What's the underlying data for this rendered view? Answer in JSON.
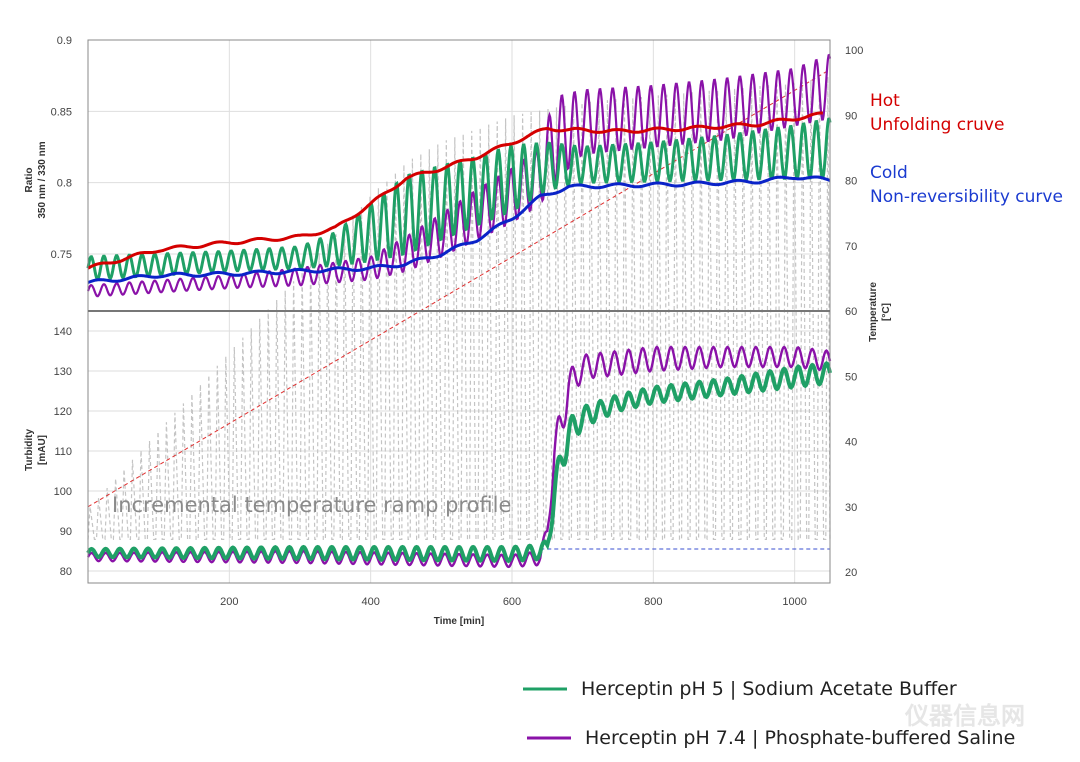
{
  "chart_data": {
    "type": "line",
    "xlabel": "Time [min]",
    "xlim": [
      0,
      1050
    ],
    "xticks": [
      200,
      400,
      600,
      800,
      1000
    ],
    "y2label": "Temperature [°C]",
    "y2lim": [
      20,
      100
    ],
    "y2ticks": [
      20,
      30,
      40,
      50,
      60,
      70,
      80,
      90,
      100
    ],
    "top_panel": {
      "ylabel": "Ratio 350 nm / 330 nm",
      "ylim": [
        0.71,
        0.9
      ],
      "yticks": [
        0.75,
        0.8,
        0.85,
        0.9
      ],
      "series": [
        {
          "name": "Hot Unfolding cruve",
          "color": "#d40000",
          "x": [
            0,
            100,
            200,
            300,
            350,
            400,
            450,
            500,
            550,
            600,
            650,
            680,
            750,
            850,
            950,
            1000,
            1040
          ],
          "y": [
            0.74,
            0.753,
            0.758,
            0.762,
            0.768,
            0.785,
            0.803,
            0.81,
            0.818,
            0.828,
            0.838,
            0.837,
            0.836,
            0.838,
            0.841,
            0.845,
            0.848
          ]
        },
        {
          "name": "Cold Non-reversibility curve",
          "color": "#0a23c8",
          "x": [
            0,
            100,
            200,
            300,
            400,
            450,
            500,
            550,
            600,
            640,
            680,
            750,
            850,
            950,
            1000,
            1050
          ],
          "y": [
            0.73,
            0.735,
            0.736,
            0.738,
            0.74,
            0.743,
            0.75,
            0.76,
            0.775,
            0.79,
            0.797,
            0.798,
            0.799,
            0.801,
            0.804,
            0.802
          ]
        },
        {
          "name": "Herceptin pH 5 | Sodium Acetate Buffer",
          "color": "#1fa066",
          "x": [
            0,
            200,
            300,
            350,
            400,
            450,
            500,
            550,
            600,
            650,
            700,
            800,
            900,
            1000,
            1050
          ],
          "low": [
            0.732,
            0.738,
            0.74,
            0.742,
            0.745,
            0.75,
            0.76,
            0.77,
            0.78,
            0.795,
            0.8,
            0.801,
            0.802,
            0.803,
            0.803
          ],
          "high": [
            0.748,
            0.752,
            0.755,
            0.765,
            0.785,
            0.805,
            0.812,
            0.818,
            0.826,
            0.828,
            0.825,
            0.828,
            0.833,
            0.84,
            0.845
          ]
        },
        {
          "name": "Herceptin pH 7.4 | Phosphate-buffered Saline",
          "color": "#8a12a8",
          "x": [
            0,
            200,
            300,
            400,
            450,
            500,
            550,
            600,
            640,
            660,
            700,
            800,
            900,
            1000,
            1050
          ],
          "low": [
            0.72,
            0.726,
            0.728,
            0.732,
            0.738,
            0.748,
            0.76,
            0.772,
            0.785,
            0.8,
            0.82,
            0.825,
            0.83,
            0.84,
            0.845
          ],
          "high": [
            0.728,
            0.735,
            0.74,
            0.748,
            0.762,
            0.778,
            0.795,
            0.81,
            0.825,
            0.86,
            0.865,
            0.868,
            0.873,
            0.88,
            0.89
          ]
        }
      ]
    },
    "bottom_panel": {
      "ylabel": "Turbidity [mAU]",
      "ylim": [
        77,
        145
      ],
      "yticks": [
        80,
        90,
        100,
        110,
        120,
        130,
        140
      ],
      "series": [
        {
          "name": "Herceptin pH 5 | Sodium Acetate Buffer",
          "color": "#1fa066",
          "x": [
            0,
            300,
            600,
            640,
            650,
            660,
            670,
            680,
            700,
            750,
            800,
            900,
            1000,
            1050
          ],
          "low": [
            83.5,
            83.0,
            82.5,
            83.0,
            85,
            95,
            104,
            110,
            116,
            120,
            122,
            124,
            126,
            127
          ],
          "high": [
            85.5,
            86.0,
            86.0,
            86.5,
            88,
            103,
            112,
            118,
            121,
            124,
            126,
            128,
            131,
            132
          ]
        },
        {
          "name": "Herceptin pH 7.4 | Phosphate-buffered Saline",
          "color": "#8a12a8",
          "x": [
            0,
            300,
            600,
            640,
            650,
            660,
            670,
            680,
            700,
            750,
            800,
            900,
            1000,
            1050
          ],
          "low": [
            82.5,
            82.0,
            81.0,
            81.5,
            88,
            105,
            112,
            122,
            128,
            129,
            130,
            131,
            131,
            130
          ],
          "high": [
            84.5,
            85.0,
            84.0,
            85.0,
            92,
            114,
            122,
            130,
            134,
            135,
            136,
            136,
            136,
            135
          ]
        }
      ],
      "reference_line": {
        "y": 85.5,
        "x_start": 640,
        "color": "#3a4fd0"
      }
    },
    "temperature_ramp": {
      "color": "#c4c4c4",
      "envelope_x": [
        0,
        50,
        100,
        150,
        200,
        250,
        300,
        350,
        400,
        450,
        500,
        550,
        600,
        650,
        700,
        800,
        900,
        1000,
        1050
      ],
      "envelope_c": [
        30,
        36,
        42,
        48,
        54,
        60,
        66,
        72,
        78,
        83,
        86,
        88,
        90,
        91,
        92,
        93,
        94,
        95,
        96
      ],
      "baseline_c": 25,
      "ramp_line": {
        "x": [
          0,
          1050
        ],
        "c": [
          30,
          97
        ],
        "color": "#e03030"
      }
    },
    "annotations": {
      "hot_1": "Hot",
      "hot_2": "Unfolding cruve",
      "cold_1": "Cold",
      "cold_2": "Non-reversibility curve",
      "ramp": "Incremental temperature ramp profile"
    },
    "legend": [
      {
        "label": "Herceptin pH 5 | Sodium Acetate Buffer",
        "color": "#1fa066"
      },
      {
        "label": "Herceptin pH 7.4 | Phosphate-buffered Saline",
        "color": "#8a12a8"
      }
    ],
    "watermark": "仪器信息网"
  }
}
